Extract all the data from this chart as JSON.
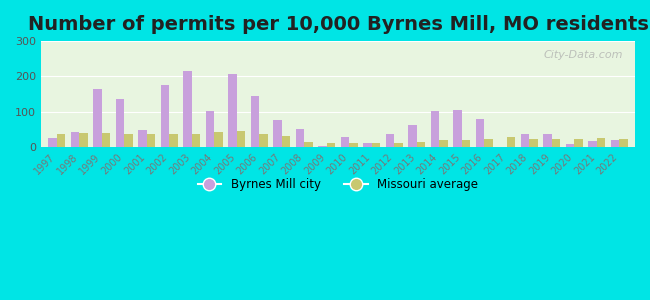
{
  "title": "Number of permits per 10,000 Byrnes Mill, MO residents",
  "years": [
    1997,
    1998,
    1999,
    2000,
    2001,
    2002,
    2003,
    2004,
    2005,
    2006,
    2007,
    2008,
    2009,
    2010,
    2011,
    2012,
    2013,
    2014,
    2015,
    2016,
    2017,
    2018,
    2019,
    2020,
    2021,
    2022
  ],
  "byrnes_mill": [
    25,
    42,
    165,
    137,
    47,
    175,
    215,
    103,
    208,
    145,
    76,
    50,
    2,
    27,
    10,
    35,
    62,
    102,
    105,
    78,
    0,
    35,
    35,
    8,
    15,
    20
  ],
  "missouri_avg": [
    37,
    38,
    38,
    35,
    37,
    37,
    37,
    43,
    44,
    37,
    30,
    14,
    10,
    12,
    12,
    12,
    13,
    18,
    18,
    23,
    28,
    22,
    22,
    22,
    25,
    22
  ],
  "byrnes_color": "#c8a0dc",
  "missouri_color": "#c8c870",
  "background_outer": "#00e5e5",
  "background_plot": "#e8f5e0",
  "ylim": [
    0,
    300
  ],
  "yticks": [
    0,
    100,
    200,
    300
  ],
  "legend_byrnes": "Byrnes Mill city",
  "legend_missouri": "Missouri average",
  "title_fontsize": 14,
  "watermark": "City-Data.com"
}
